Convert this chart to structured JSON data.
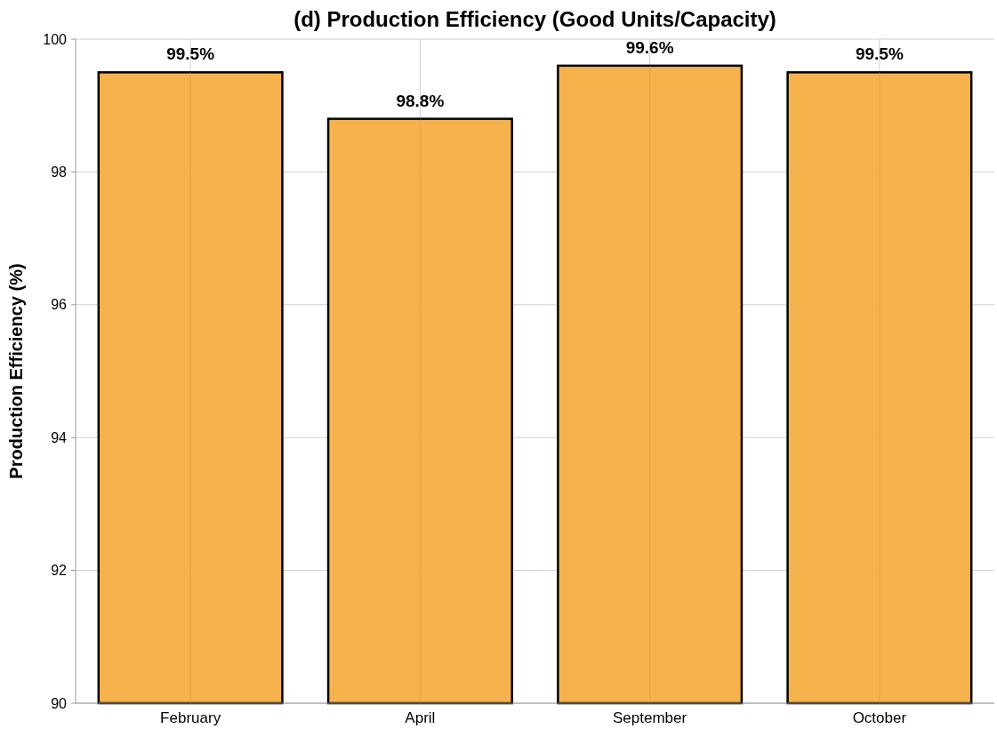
{
  "chart_data": {
    "type": "bar",
    "title": "(d) Production Efficiency (Good Units/Capacity)",
    "ylabel": "Production Efficiency (%)",
    "categories": [
      "February",
      "April",
      "September",
      "October"
    ],
    "values": [
      99.5,
      98.8,
      99.6,
      99.5
    ],
    "value_labels": [
      "99.5%",
      "98.8%",
      "99.6%",
      "99.5%"
    ],
    "color": "#f5ae42",
    "ylim": [
      90,
      100
    ],
    "yticks": [
      90,
      92,
      94,
      96,
      98,
      100
    ],
    "grid": true
  }
}
